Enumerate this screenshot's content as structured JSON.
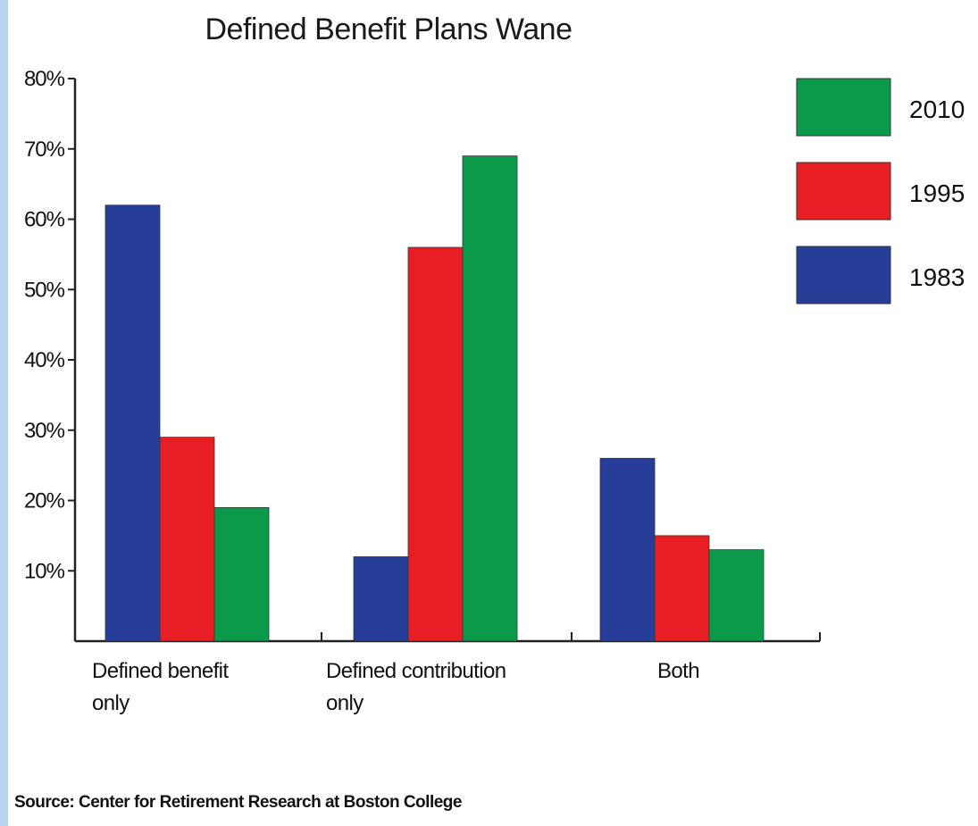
{
  "chart_data": {
    "type": "bar",
    "title": "Defined Benefit Plans Wane",
    "categories": [
      [
        "Defined benefit",
        "only"
      ],
      [
        "Defined contribution",
        "only"
      ],
      [
        "Both"
      ]
    ],
    "series": [
      {
        "name": "1983",
        "color": "#263e97",
        "values": [
          62,
          12,
          26
        ]
      },
      {
        "name": "1995",
        "color": "#e81e25",
        "values": [
          29,
          56,
          15
        ]
      },
      {
        "name": "2010",
        "color": "#0a9a4a",
        "values": [
          19,
          69,
          13
        ]
      }
    ],
    "legend_order": [
      "2010",
      "1995",
      "1983"
    ],
    "y_ticks": [
      {
        "value": 10,
        "label": "10%"
      },
      {
        "value": 20,
        "label": "20%"
      },
      {
        "value": 30,
        "label": "30%"
      },
      {
        "value": 40,
        "label": "40%"
      },
      {
        "value": 50,
        "label": "50%"
      },
      {
        "value": 60,
        "label": "60%"
      },
      {
        "value": 70,
        "label": "70%"
      },
      {
        "value": 80,
        "label": "80%"
      }
    ],
    "ylim": [
      0,
      80
    ],
    "legend_position": "top-right",
    "grid": false,
    "source": "Source: Center for Retirement Research at Boston College"
  }
}
